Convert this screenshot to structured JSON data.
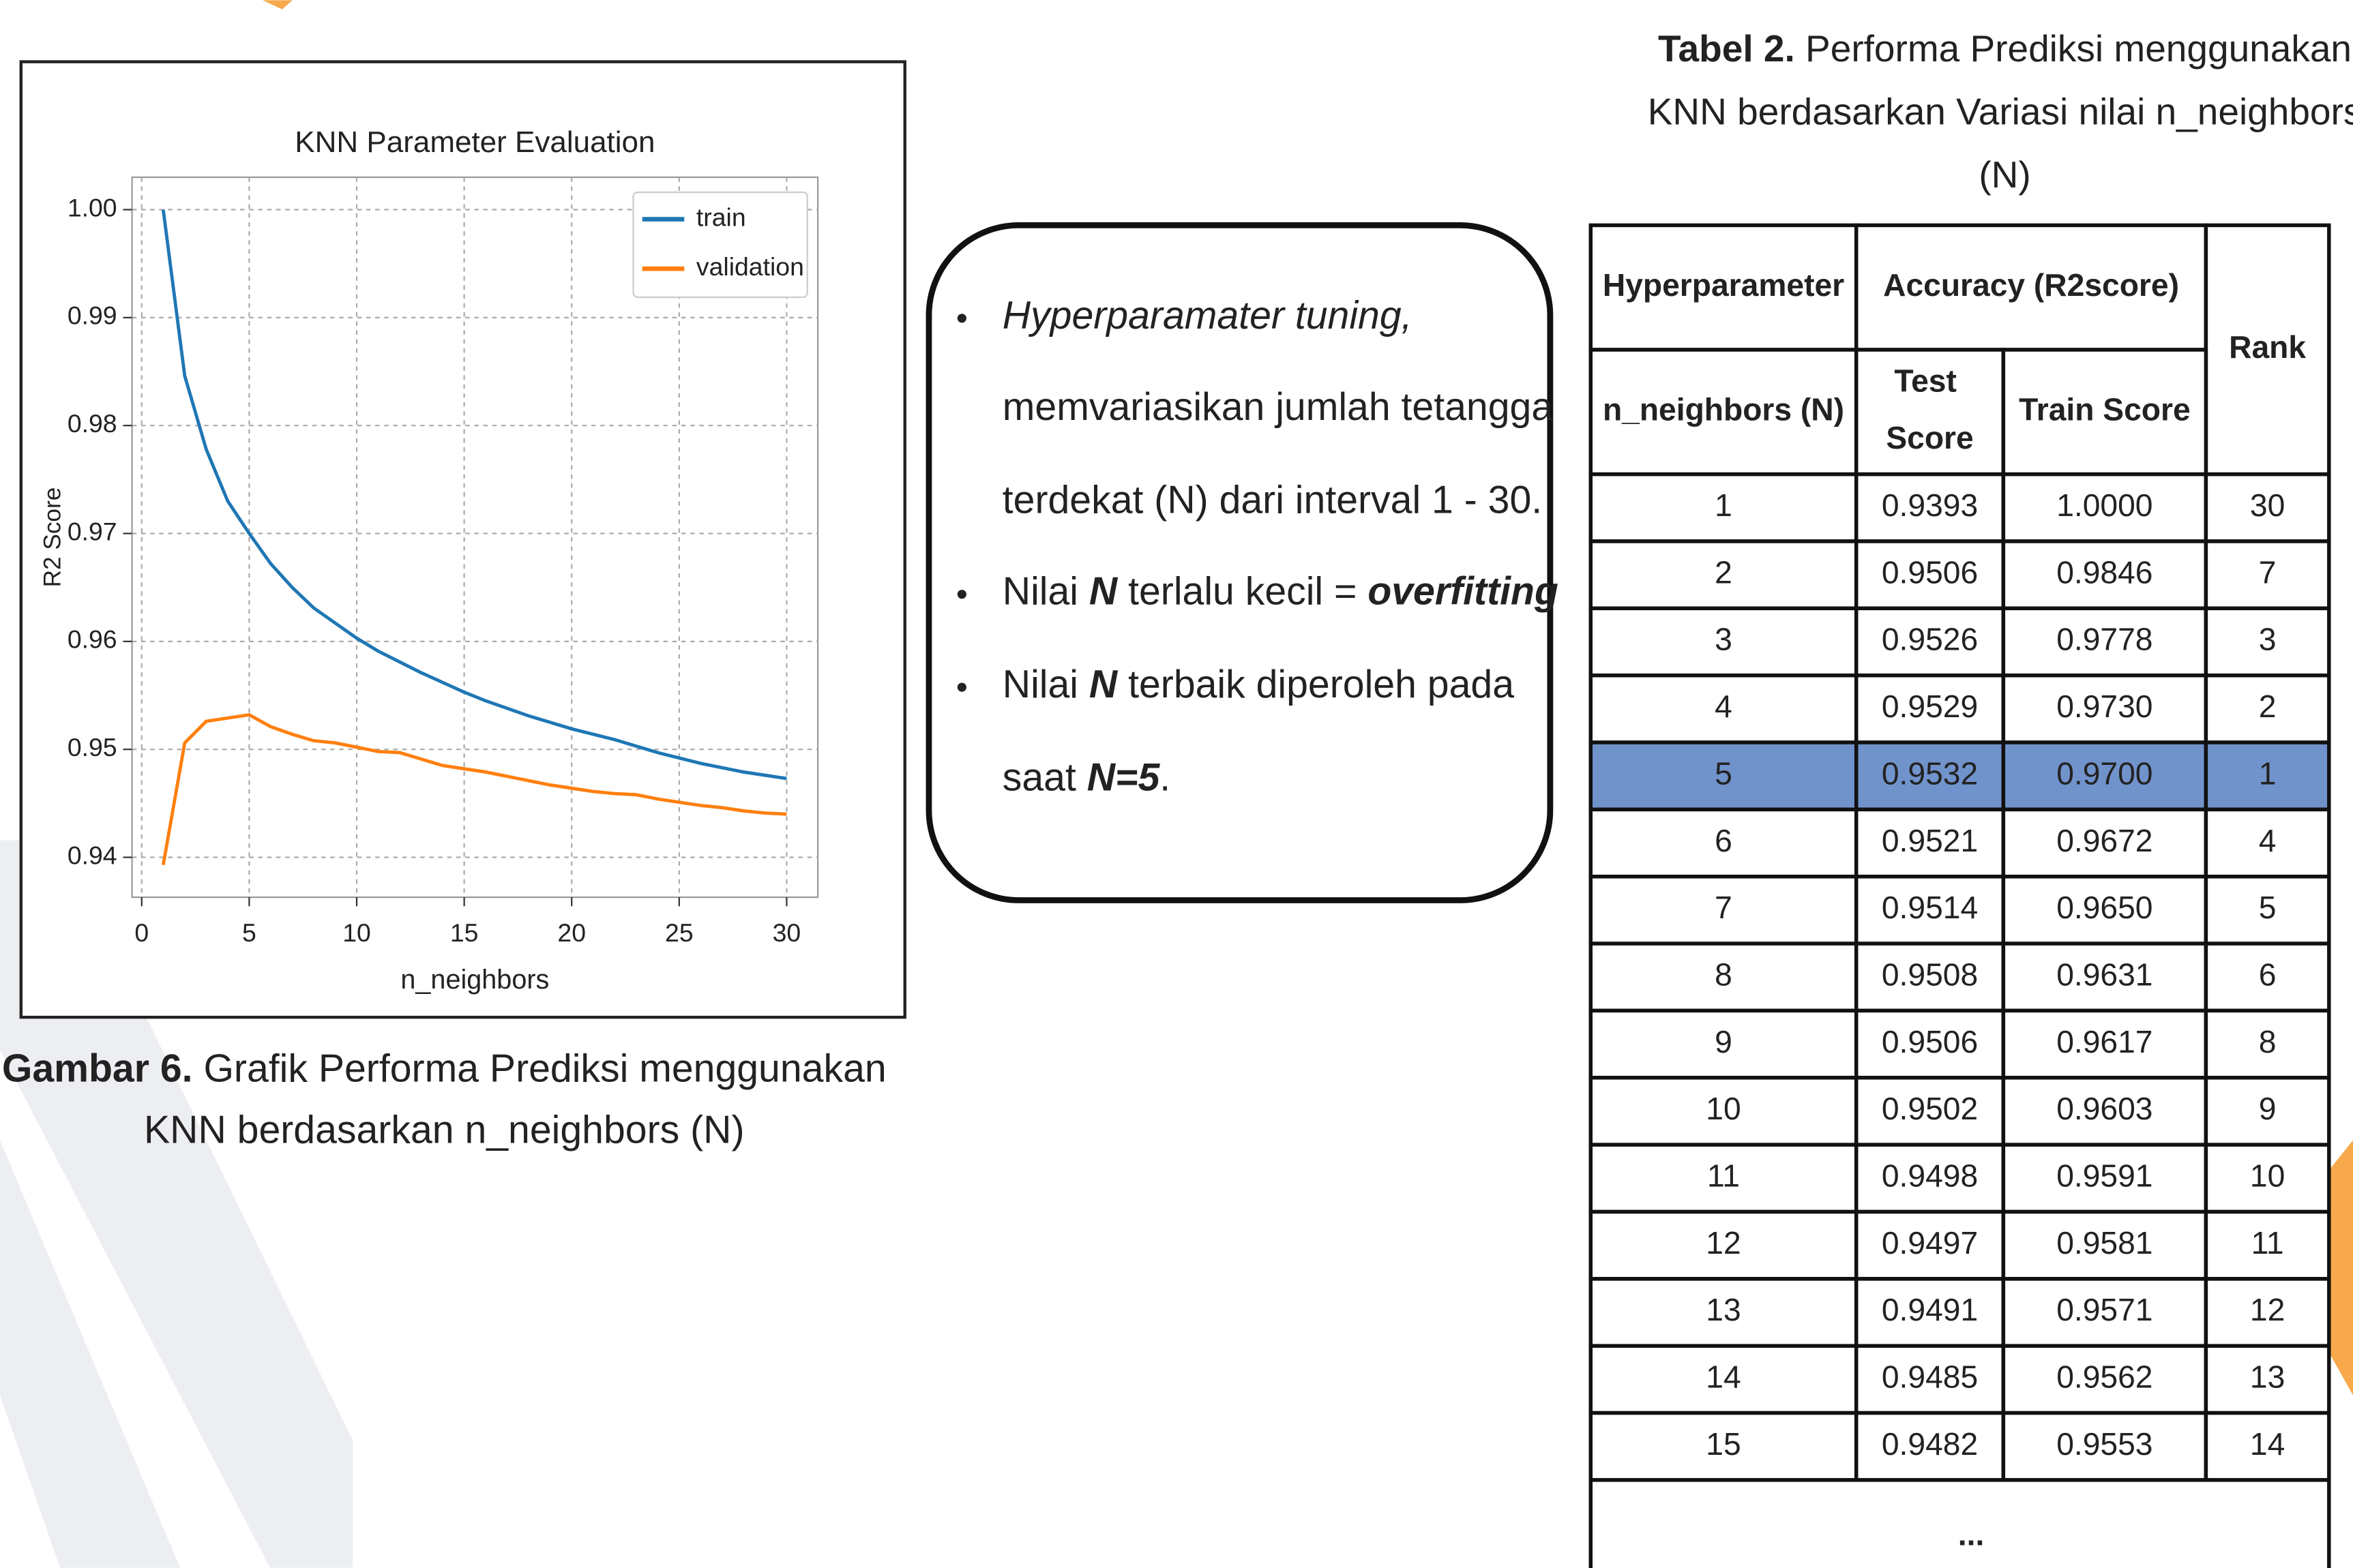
{
  "chart_data": {
    "type": "line",
    "title": "KNN Parameter Evaluation",
    "x_label": "n_neighbors",
    "y_label": "R2 Score",
    "x": [
      1,
      2,
      3,
      4,
      5,
      6,
      7,
      8,
      9,
      10,
      11,
      12,
      13,
      14,
      15,
      16,
      17,
      18,
      19,
      20,
      21,
      22,
      23,
      24,
      25,
      26,
      27,
      28,
      29,
      30
    ],
    "series": [
      {
        "name": "train",
        "color": "#1f77b4",
        "values": [
          1.0,
          0.9846,
          0.9778,
          0.973,
          0.97,
          0.9672,
          0.965,
          0.9631,
          0.9617,
          0.9603,
          0.9591,
          0.9581,
          0.9571,
          0.9562,
          0.9553,
          0.9545,
          0.9538,
          0.9531,
          0.9525,
          0.9519,
          0.9514,
          0.9509,
          0.9503,
          0.9497,
          0.9492,
          0.9487,
          0.9483,
          0.9479,
          0.9476,
          0.9473
        ]
      },
      {
        "name": "validation",
        "color": "#ff7f0e",
        "values": [
          0.9393,
          0.9506,
          0.9526,
          0.9529,
          0.9532,
          0.9521,
          0.9514,
          0.9508,
          0.9506,
          0.9502,
          0.9498,
          0.9497,
          0.9491,
          0.9485,
          0.9482,
          0.9479,
          0.9475,
          0.9471,
          0.9467,
          0.9464,
          0.9461,
          0.9459,
          0.9458,
          0.9454,
          0.9451,
          0.9448,
          0.9446,
          0.9443,
          0.9441,
          0.944
        ]
      }
    ],
    "xlim": [
      -0.45,
      31.45
    ],
    "ylim": [
      0.9363,
      1.003
    ],
    "xticks": [
      0,
      5,
      10,
      15,
      20,
      25,
      30
    ],
    "yticks": [
      0.94,
      0.95,
      0.96,
      0.97,
      0.98,
      0.99,
      {
        "value": 1,
        "label": "1.00"
      }
    ],
    "grid": true,
    "legend": "upper right"
  },
  "figure_caption": {
    "lines": [
      [
        {
          "text": "Gambar 6.",
          "bold": true
        },
        {
          "text": " Grafik Performa Prediksi menggunakan"
        }
      ],
      [
        {
          "text": "KNN berdasarkan n_neighbors (N)"
        }
      ]
    ]
  },
  "bullets": [
    {
      "lines": [
        [
          {
            "text": "Hyperparamater tuning,",
            "italic": true
          }
        ],
        [
          {
            "text": "memvariasikan jumlah tetangga"
          }
        ],
        [
          {
            "text": "terdekat (N) dari interval 1 - 30."
          }
        ]
      ]
    },
    {
      "lines": [
        [
          {
            "text": "Nilai "
          },
          {
            "text": "N",
            "bold": true,
            "italic": true
          },
          {
            "text": " terlalu kecil = "
          },
          {
            "text": "overfitting",
            "bold": true,
            "italic": true
          }
        ]
      ]
    },
    {
      "lines": [
        [
          {
            "text": "Nilai "
          },
          {
            "text": "N",
            "bold": true,
            "italic": true
          },
          {
            "text": " terbaik diperoleh pada"
          }
        ],
        [
          {
            "text": "saat "
          },
          {
            "text": "N=5",
            "bold": true,
            "italic": true
          },
          {
            "text": "."
          }
        ]
      ]
    }
  ],
  "table_caption": {
    "lines": [
      [
        {
          "text": "Tabel 2.",
          "bold": true
        },
        {
          "text": " Performa Prediksi menggunakan"
        }
      ],
      [
        {
          "text": "KNN berdasarkan Variasi nilai n_neighbors"
        }
      ],
      [
        {
          "text": "(N)"
        }
      ]
    ]
  },
  "table": {
    "header_row1": [
      "Hyperparameter",
      "Accuracy (R2score)",
      "Rank"
    ],
    "header_row2": [
      "n_neighbors (N)",
      "Test Score",
      "Train Score"
    ],
    "rows": [
      [
        "1",
        "0.9393",
        "1.0000",
        "30"
      ],
      [
        "2",
        "0.9506",
        "0.9846",
        "7"
      ],
      [
        "3",
        "0.9526",
        "0.9778",
        "3"
      ],
      [
        "4",
        "0.9529",
        "0.9730",
        "2"
      ],
      [
        "5",
        "0.9532",
        "0.9700",
        "1"
      ],
      [
        "6",
        "0.9521",
        "0.9672",
        "4"
      ],
      [
        "7",
        "0.9514",
        "0.9650",
        "5"
      ],
      [
        "8",
        "0.9508",
        "0.9631",
        "6"
      ],
      [
        "9",
        "0.9506",
        "0.9617",
        "8"
      ],
      [
        "10",
        "0.9502",
        "0.9603",
        "9"
      ],
      [
        "11",
        "0.9498",
        "0.9591",
        "10"
      ],
      [
        "12",
        "0.9497",
        "0.9581",
        "11"
      ],
      [
        "13",
        "0.9491",
        "0.9571",
        "12"
      ],
      [
        "14",
        "0.9485",
        "0.9562",
        "13"
      ],
      [
        "15",
        "0.9482",
        "0.9553",
        "14"
      ]
    ],
    "ellipsis": "...",
    "highlighted_row": 4
  }
}
